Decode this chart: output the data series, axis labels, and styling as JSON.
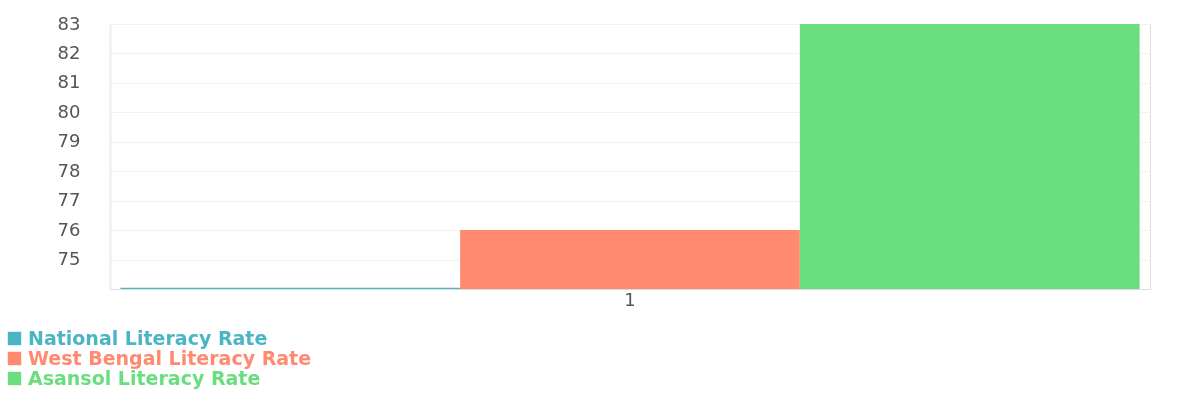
{
  "chart_data": {
    "type": "bar",
    "categories": [
      "1"
    ],
    "series": [
      {
        "name": "National Literacy Rate",
        "color": "#4bb5c6",
        "values": [
          74.04
        ]
      },
      {
        "name": "West Bengal Literacy Rate",
        "color": "#ff8a70",
        "values": [
          76
        ]
      },
      {
        "name": "Asansol Literacy Rate",
        "color": "#6ade7e",
        "values": [
          83
        ]
      }
    ],
    "ylim": [
      74,
      83
    ],
    "yticks": [
      75,
      76,
      77,
      78,
      79,
      80,
      81,
      82,
      83
    ],
    "grid": "y",
    "legend": "bottom left"
  }
}
